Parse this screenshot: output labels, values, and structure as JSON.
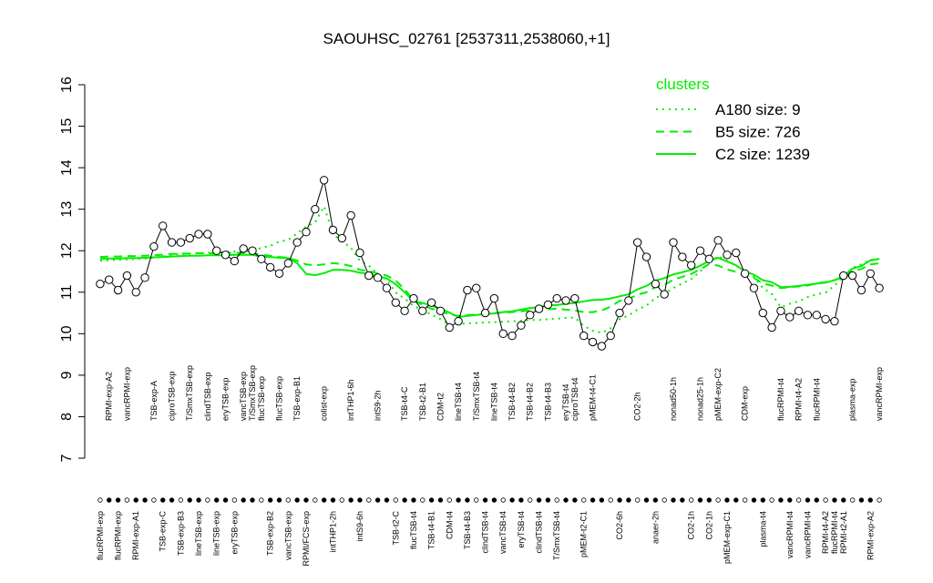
{
  "chart_data": {
    "type": "line",
    "title": "SAOUHSC_02761 [2537311,2538060,+1]",
    "categories_top": [
      null,
      "RPMI-exp-A2",
      null,
      "vancRPMI-exp",
      null,
      null,
      "TSB-exp-A",
      null,
      "ciproTSB-exp",
      null,
      "T/SmxTSB-exp",
      null,
      "clindTSB-exp",
      null,
      "eryTSB-exp",
      null,
      "vancTSB-exp",
      "T/SmxTSB-exp",
      "flucTSB-exp",
      null,
      "flucTSB-exp",
      null,
      "TSB-exp-B1",
      null,
      null,
      "colist-exp",
      null,
      null,
      "intTHP1-6h",
      null,
      null,
      "intS9-2h",
      null,
      null,
      "TSB-t4-C",
      null,
      "TSB-t2-B1",
      null,
      "CDM-t2",
      null,
      "lineTSB-t4",
      null,
      "T/SmxTSB-t4",
      null,
      "lineTSB-t4",
      null,
      "TSB-t4-B2",
      null,
      "TSB-t4-B2",
      null,
      "TSB-t4-B3",
      null,
      "eryTSB-t4",
      "ciproTSB-t4",
      null,
      "pMEM-t4-C1",
      null,
      null,
      null,
      null,
      "CO2-2h",
      null,
      null,
      null,
      "nonad50-1h",
      null,
      null,
      "nonad25-1h",
      null,
      "pMEM-exp-C2",
      null,
      null,
      "CDM-exp",
      null,
      null,
      null,
      "flucRPMI-t4",
      null,
      "RPMI-t4-A2",
      null,
      "flucRPMI-t4",
      null,
      null,
      null,
      "plasma-exp",
      null,
      null,
      "vancRPMI-exp"
    ],
    "categories_bottom": [
      "flucRPMI-exp",
      null,
      "flucRPMI-exp",
      null,
      "RPMI-exp-A1",
      null,
      null,
      "TSB-exp-C",
      null,
      "TSB-exp-B3",
      null,
      "lineTSB-exp",
      null,
      "lineTSB-exp",
      null,
      "eryTSB-exp",
      null,
      null,
      null,
      "TSB-exp-B2",
      null,
      "vancTSB-exp",
      null,
      "RPMI/FCS-exp",
      null,
      null,
      "intTHP1-2h",
      null,
      null,
      "intS9-6h",
      null,
      null,
      null,
      "TSB-t2-C",
      null,
      "flucTSB-t4",
      null,
      "TSB-t4-B1",
      null,
      "CDM-t4",
      null,
      "TSB-t4-B3",
      null,
      "clindTSB-t4",
      null,
      "vancTSB-t4",
      null,
      "eryTSB-t4",
      null,
      "clindTSB-t4",
      null,
      "T/SmxTSB-t4",
      null,
      null,
      "pMEM-t2-C1",
      null,
      null,
      null,
      "CO2-6h",
      null,
      null,
      null,
      "anaer-2h",
      null,
      null,
      null,
      "CO2-1h",
      null,
      "CO2-1h",
      null,
      "pMEM-exp-C1",
      null,
      null,
      null,
      "plasma-t4",
      null,
      null,
      "vancRPMI-t4",
      null,
      "vancRPMI-t4",
      null,
      "RPMI-t4-A2",
      "flucRPMI-t4",
      "RPMI-t2-A1",
      null,
      null,
      "RPMI-exp-A2",
      null
    ],
    "values": [
      11.2,
      11.3,
      11.05,
      11.4,
      11.0,
      11.35,
      12.1,
      12.6,
      12.2,
      12.2,
      12.3,
      12.4,
      12.4,
      12.0,
      11.9,
      11.75,
      12.05,
      12.0,
      11.8,
      11.6,
      11.45,
      11.7,
      12.2,
      12.45,
      13.0,
      13.7,
      12.5,
      12.3,
      12.85,
      11.95,
      11.4,
      11.35,
      11.1,
      10.75,
      10.55,
      10.85,
      10.55,
      10.75,
      10.55,
      10.15,
      10.3,
      11.05,
      11.1,
      10.5,
      10.85,
      10.0,
      9.95,
      10.2,
      10.45,
      10.6,
      10.7,
      10.85,
      10.8,
      10.85,
      9.95,
      9.8,
      9.7,
      9.95,
      10.5,
      10.8,
      12.2,
      11.85,
      11.2,
      10.95,
      12.2,
      11.85,
      11.65,
      12.0,
      11.8,
      12.25,
      11.9,
      11.95,
      11.45,
      11.1,
      10.5,
      10.15,
      10.55,
      10.4,
      10.55,
      10.45,
      10.45,
      10.35,
      10.3,
      11.4,
      11.4,
      11.05,
      11.45,
      11.1
    ],
    "color": "#000000",
    "series": [
      {
        "name": "A180 size: 9",
        "color": "#00ee00",
        "dash": "dotted",
        "values": [
          11.76,
          11.77,
          11.78,
          11.79,
          11.8,
          11.81,
          11.83,
          11.86,
          11.9,
          11.92,
          11.93,
          11.94,
          11.95,
          11.96,
          11.97,
          11.98,
          11.99,
          11.99,
          12.07,
          12.12,
          12.22,
          12.26,
          12.42,
          12.58,
          12.68,
          13.07,
          12.4,
          12.23,
          12.07,
          11.76,
          11.64,
          11.44,
          11.3,
          10.99,
          10.85,
          10.67,
          10.57,
          10.46,
          10.35,
          10.21,
          10.23,
          10.25,
          10.26,
          10.27,
          10.28,
          10.29,
          10.3,
          10.31,
          10.33,
          10.33,
          10.35,
          10.36,
          10.38,
          10.39,
          10.19,
          10.07,
          10.02,
          10.13,
          10.35,
          10.44,
          10.58,
          10.68,
          10.86,
          10.96,
          11.1,
          11.21,
          11.32,
          11.5,
          11.71,
          11.87,
          11.76,
          11.65,
          11.47,
          11.37,
          11.1,
          10.96,
          10.64,
          10.72,
          10.78,
          10.88,
          10.95,
          10.99,
          11.16,
          11.37,
          11.59,
          11.67,
          11.78,
          11.8
        ]
      },
      {
        "name": "B5 size: 726",
        "color": "#00ee00",
        "dash": "dashed",
        "values": [
          11.85,
          11.86,
          11.86,
          11.87,
          11.87,
          11.88,
          11.89,
          11.9,
          11.92,
          11.93,
          11.93,
          11.94,
          11.94,
          11.94,
          11.95,
          11.95,
          11.95,
          11.94,
          11.9,
          11.88,
          11.85,
          11.83,
          11.76,
          11.67,
          11.65,
          11.67,
          11.7,
          11.68,
          11.63,
          11.54,
          11.51,
          11.45,
          11.4,
          11.28,
          11.07,
          10.81,
          10.69,
          10.6,
          10.55,
          10.46,
          10.43,
          10.45,
          10.46,
          10.48,
          10.49,
          10.51,
          10.52,
          10.54,
          10.56,
          10.57,
          10.59,
          10.6,
          10.58,
          10.56,
          10.52,
          10.52,
          10.56,
          10.65,
          10.79,
          10.84,
          10.94,
          11.0,
          11.12,
          11.18,
          11.3,
          11.37,
          11.44,
          11.55,
          11.68,
          11.64,
          11.55,
          11.49,
          11.39,
          11.34,
          11.21,
          11.16,
          11.1,
          11.12,
          11.14,
          11.16,
          11.22,
          11.24,
          11.29,
          11.37,
          11.51,
          11.56,
          11.67,
          11.7
        ]
      },
      {
        "name": "C2 size: 1239",
        "color": "#00ee00",
        "dash": "solid",
        "values": [
          11.8,
          11.81,
          11.81,
          11.82,
          11.82,
          11.83,
          11.84,
          11.85,
          11.86,
          11.87,
          11.88,
          11.88,
          11.89,
          11.89,
          11.89,
          11.9,
          11.9,
          11.9,
          11.86,
          11.85,
          11.83,
          11.82,
          11.7,
          11.44,
          11.41,
          11.46,
          11.54,
          11.54,
          11.52,
          11.47,
          11.45,
          11.38,
          11.33,
          11.19,
          11.0,
          10.79,
          10.74,
          10.68,
          10.6,
          10.51,
          10.4,
          10.43,
          10.45,
          10.47,
          10.49,
          10.52,
          10.54,
          10.58,
          10.62,
          10.64,
          10.69,
          10.69,
          10.72,
          10.74,
          10.78,
          10.81,
          10.82,
          10.85,
          10.9,
          10.95,
          11.07,
          11.15,
          11.28,
          11.34,
          11.43,
          11.48,
          11.54,
          11.64,
          11.75,
          11.83,
          11.74,
          11.65,
          11.5,
          11.42,
          11.29,
          11.24,
          11.12,
          11.13,
          11.15,
          11.18,
          11.21,
          11.23,
          11.29,
          11.39,
          11.57,
          11.63,
          11.77,
          11.8
        ]
      }
    ],
    "legend_title": "clusters",
    "legend": "topright",
    "ylim": [
      7,
      16
    ],
    "yticks": [
      7,
      8,
      9,
      10,
      11,
      12,
      13,
      14,
      15,
      16
    ]
  }
}
